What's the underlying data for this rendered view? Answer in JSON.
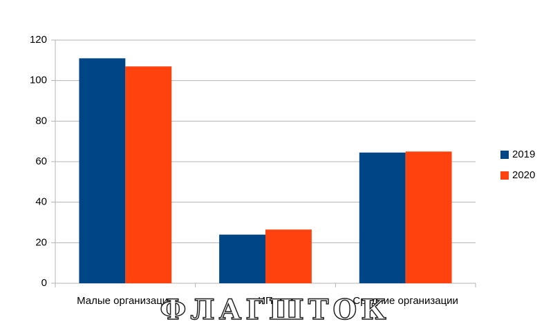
{
  "chart_data": {
    "type": "bar",
    "categories": [
      "Малые организации",
      "ИП",
      "Средние организации"
    ],
    "series": [
      {
        "name": "2019",
        "color": "#004586",
        "values": [
          111,
          24,
          64.5
        ]
      },
      {
        "name": "2020",
        "color": "#ff420e",
        "values": [
          107,
          26.5,
          65
        ]
      }
    ],
    "ylim": [
      0,
      120
    ],
    "yticks": [
      0,
      20,
      40,
      60,
      80,
      100,
      120
    ],
    "grid": true,
    "legend": "right",
    "watermark": "ФЛАГШТОК"
  }
}
